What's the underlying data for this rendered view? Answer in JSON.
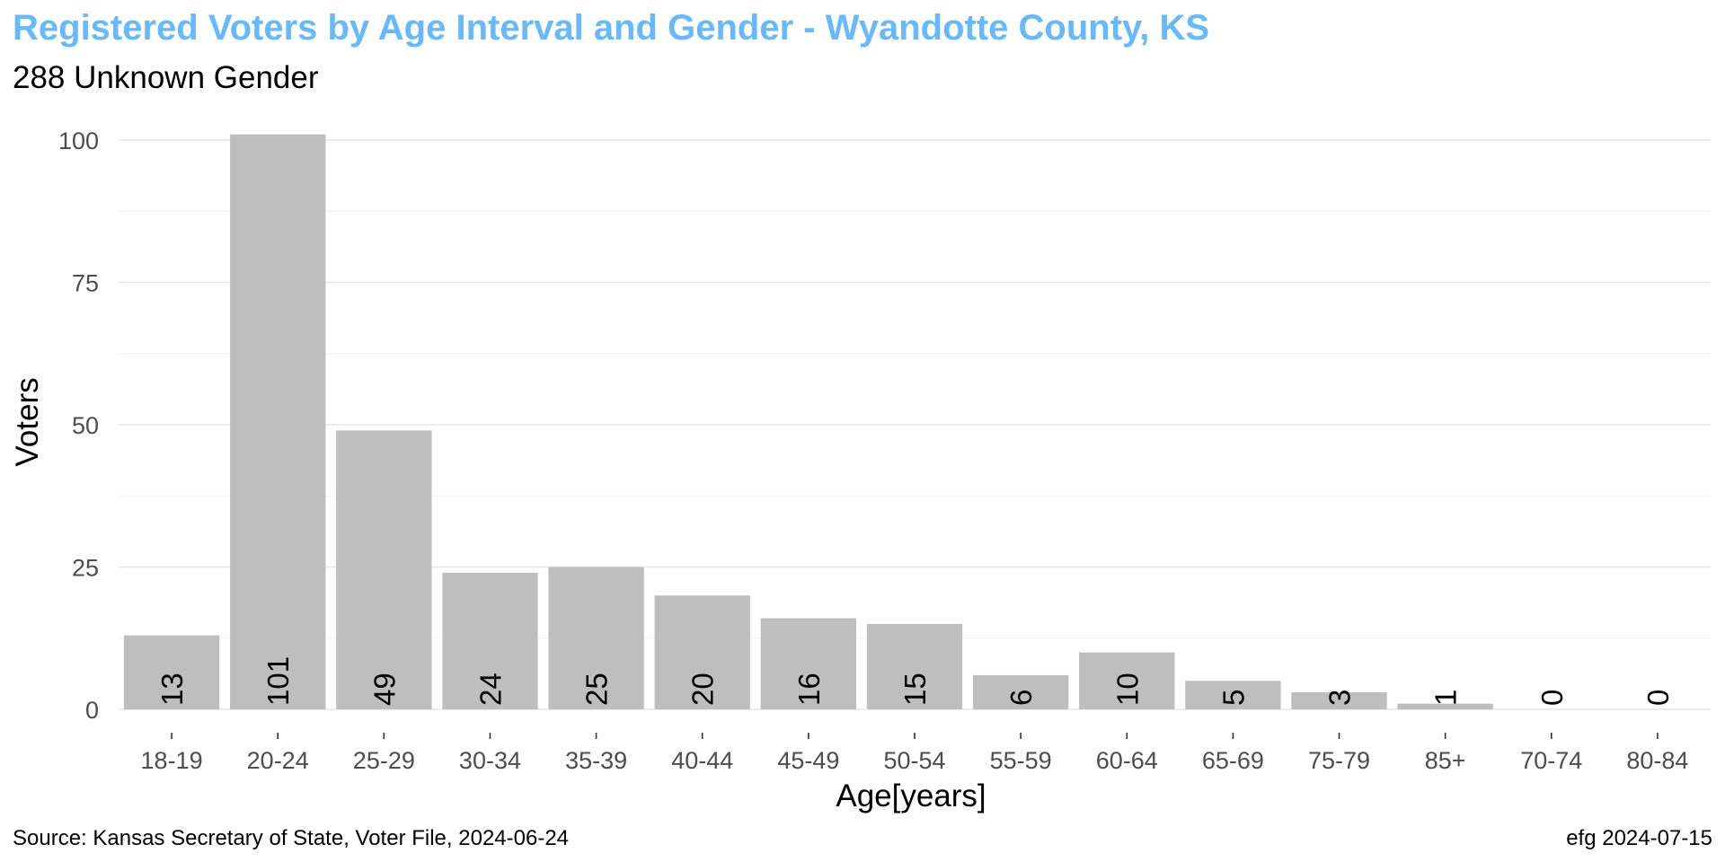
{
  "title": "Registered Voters by Age Interval and Gender - Wyandotte County, KS",
  "subtitle": "288 Unknown Gender",
  "caption_left": "Source:  Kansas Secretary of State, Voter File, 2024-06-24",
  "caption_right": "efg 2024-07-15",
  "colors": {
    "title": "#66b8ff",
    "bar": "#bebebe",
    "background": "#ffffff"
  },
  "chart_data": {
    "type": "bar",
    "title": "Registered Voters by Age Interval and Gender - Wyandotte County, KS",
    "subtitle": "288 Unknown Gender",
    "xlabel": "Age[years]",
    "ylabel": "Voters",
    "categories": [
      "18-19",
      "20-24",
      "25-29",
      "30-34",
      "35-39",
      "40-44",
      "45-49",
      "50-54",
      "55-59",
      "60-64",
      "65-69",
      "75-79",
      "85+",
      "70-74",
      "80-84"
    ],
    "values": [
      13,
      101,
      49,
      24,
      25,
      20,
      16,
      15,
      6,
      10,
      5,
      3,
      1,
      0,
      0
    ],
    "data_labels": [
      "13",
      "101",
      "49",
      "24",
      "25",
      "20",
      "16",
      "15",
      "6",
      "10",
      "5",
      "3",
      "1",
      "0",
      "0"
    ],
    "y_ticks": [
      "0",
      "25",
      "50",
      "75",
      "100"
    ],
    "ylim": [
      0,
      101
    ],
    "grid": true,
    "legend": "none"
  }
}
